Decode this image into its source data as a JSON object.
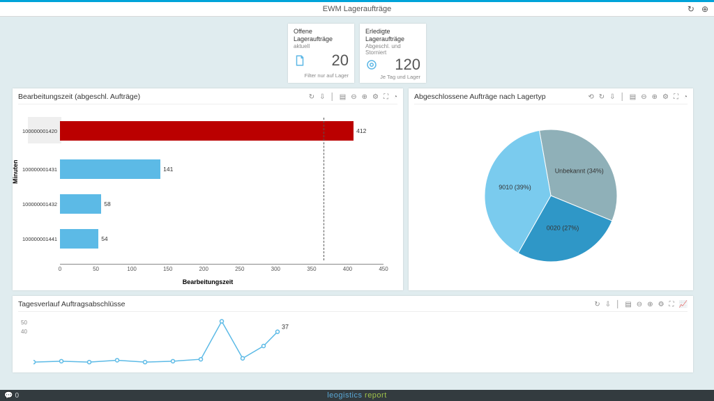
{
  "topbar": {
    "title": "EWM Lageraufträge"
  },
  "kpi": [
    {
      "title": "Offene Lageraufträge",
      "sub": "aktuell",
      "value": "20",
      "footer": "Filter nur auf Lager",
      "icon_color": "#5cb7e6"
    },
    {
      "title": "Erledigte Lageraufträge",
      "sub": "Abgeschl. und Storniert",
      "value": "120",
      "footer": "Je Tag und Lager",
      "icon_color": "#5cb7e6"
    }
  ],
  "bar_panel": {
    "title": "Bearbeitungszeit (abgeschl. Aufträge)",
    "y_label": "Minuten",
    "x_label": "Bearbeitungszeit",
    "categories": [
      "100000001420",
      "100000001431",
      "100000001432",
      "100000001441"
    ],
    "values": [
      412,
      141,
      58,
      54
    ],
    "colors": [
      "#bb0000",
      "#5cbae6",
      "#5cbae6",
      "#5cbae6"
    ],
    "xlim": [
      0,
      450
    ],
    "xtick_step": 50,
    "refline_x": 370,
    "highlight_index": 0,
    "grid_color": "#e8e8e8",
    "background": "#ffffff"
  },
  "pie_panel": {
    "title": "Abgeschlossene Aufträge nach Lagertyp",
    "slices": [
      {
        "label": "Unbekannt (34%)",
        "pct": 34,
        "color": "#8fb0b8"
      },
      {
        "label": "0020 (27%)",
        "pct": 27,
        "color": "#2f97c7"
      },
      {
        "label": "9010 (39%)",
        "pct": 39,
        "color": "#7acbee"
      }
    ],
    "background": "#ffffff"
  },
  "line_panel": {
    "title": "Tagesverlauf Auftragsabschlüsse",
    "yticks": [
      50,
      40
    ],
    "color": "#5cbae6",
    "points": [
      {
        "x": 0,
        "y": 5
      },
      {
        "x": 40,
        "y": 6
      },
      {
        "x": 80,
        "y": 5
      },
      {
        "x": 120,
        "y": 7
      },
      {
        "x": 160,
        "y": 5
      },
      {
        "x": 200,
        "y": 6
      },
      {
        "x": 240,
        "y": 8
      },
      {
        "x": 270,
        "y": 48
      },
      {
        "x": 300,
        "y": 9
      },
      {
        "x": 330,
        "y": 22
      },
      {
        "x": 350,
        "y": 37
      }
    ],
    "point_label": {
      "x": 350,
      "y": 37,
      "text": "37"
    }
  },
  "footer": {
    "left_count": "0",
    "brand1": "leogistics",
    "brand2": "report"
  }
}
